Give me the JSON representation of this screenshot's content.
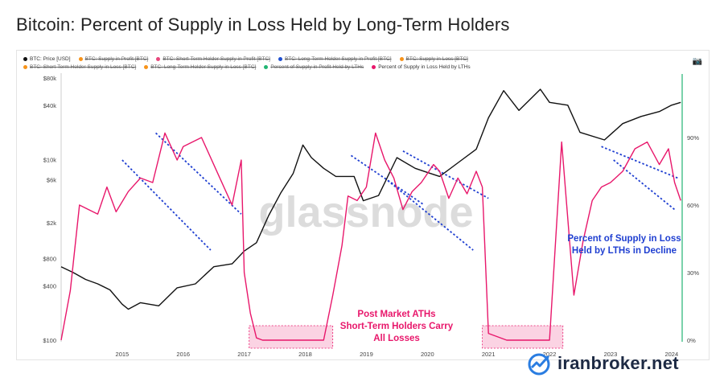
{
  "title": "Bitcoin: Percent of Supply in Loss Held by Long-Term Holders",
  "legend": [
    {
      "label": "BTC: Price [USD]",
      "color": "#111111",
      "active": true
    },
    {
      "label": "BTC: Supply in Profit [BTC]",
      "color": "#f7931a",
      "active": false
    },
    {
      "label": "BTC: Short-Term Holder Supply in Profit [BTC]",
      "color": "#e8467c",
      "active": false
    },
    {
      "label": "BTC: Long-Term Holder Supply in Profit [BTC]",
      "color": "#1f4fd1",
      "active": false
    },
    {
      "label": "BTC: Supply in Loss [BTC]",
      "color": "#f7931a",
      "active": false
    },
    {
      "label": "BTC: Short-Term Holder Supply in Loss [BTC]",
      "color": "#f7931a",
      "active": false
    },
    {
      "label": "BTC: Long-Term Holder Supply in Loss [BTC]",
      "color": "#f7931a",
      "active": false
    },
    {
      "label": "Percent of Supply in Profit Held by LTHs",
      "color": "#22b573",
      "active": false
    },
    {
      "label": "Percent of Supply in Loss Held by LTHs",
      "color": "#e8176b",
      "active": true
    }
  ],
  "watermark": "glassnode",
  "brand": "iranbroker.net",
  "colors": {
    "price": "#111111",
    "ratio": "#e8176b",
    "trend": "#1f3fd1",
    "highlight": "#f9c4da",
    "now_line": "#22b573"
  },
  "chart_data": {
    "type": "line",
    "x_ticks": [
      "2015",
      "2016",
      "2017",
      "2018",
      "2019",
      "2020",
      "2021",
      "2022",
      "2023",
      "2024"
    ],
    "y_left_ticks": [
      "$80k",
      "$40k",
      "$10k",
      "$6k",
      "$2k",
      "$800",
      "$400",
      "$100"
    ],
    "y_right_ticks": [
      "90%",
      "60%",
      "30%",
      "0%"
    ],
    "y_left_scale": "log",
    "series": [
      {
        "name": "BTC: Price [USD]",
        "axis": "left",
        "x": [
          2014.0,
          2014.2,
          2014.4,
          2014.6,
          2014.8,
          2015.0,
          2015.1,
          2015.3,
          2015.6,
          2015.9,
          2016.2,
          2016.5,
          2016.8,
          2017.0,
          2017.2,
          2017.4,
          2017.6,
          2017.8,
          2017.96,
          2018.1,
          2018.3,
          2018.5,
          2018.8,
          2018.95,
          2019.2,
          2019.5,
          2019.8,
          2020.0,
          2020.2,
          2020.5,
          2020.8,
          2021.0,
          2021.25,
          2021.5,
          2021.85,
          2022.0,
          2022.3,
          2022.5,
          2022.9,
          2023.2,
          2023.5,
          2023.8,
          2024.0,
          2024.15
        ],
        "values": [
          650,
          560,
          470,
          420,
          360,
          250,
          220,
          260,
          240,
          380,
          420,
          650,
          700,
          970,
          1200,
          2400,
          4300,
          7000,
          14500,
          10500,
          8000,
          6500,
          6500,
          3500,
          4000,
          10500,
          8000,
          7200,
          6500,
          9200,
          13000,
          29000,
          58000,
          35000,
          60000,
          43000,
          40000,
          20000,
          16500,
          25000,
          30000,
          34000,
          40000,
          43000
        ]
      },
      {
        "name": "Percent of Supply in Loss Held by LTHs",
        "axis": "right",
        "x": [
          2014.0,
          2014.15,
          2014.3,
          2014.45,
          2014.6,
          2014.75,
          2014.9,
          2015.1,
          2015.3,
          2015.5,
          2015.7,
          2015.9,
          2016.0,
          2016.3,
          2016.6,
          2016.8,
          2016.95,
          2017.0,
          2017.1,
          2017.2,
          2017.3,
          2017.5,
          2018.0,
          2018.2,
          2018.3,
          2018.45,
          2018.6,
          2018.7,
          2018.85,
          2019.0,
          2019.15,
          2019.3,
          2019.45,
          2019.6,
          2019.75,
          2019.9,
          2020.1,
          2020.2,
          2020.35,
          2020.5,
          2020.65,
          2020.8,
          2020.9,
          2021.0,
          2021.3,
          2021.6,
          2021.65,
          2021.75,
          2021.9,
          2022.0,
          2022.2,
          2022.4,
          2022.55,
          2022.7,
          2022.85,
          2023.0,
          2023.2,
          2023.4,
          2023.6,
          2023.8,
          2023.95,
          2024.05,
          2024.15
        ],
        "values": [
          0,
          22,
          60,
          58,
          56,
          68,
          57,
          66,
          72,
          70,
          92,
          80,
          86,
          90,
          72,
          60,
          80,
          30,
          12,
          1,
          0,
          0,
          0,
          0,
          0,
          20,
          42,
          64,
          62,
          68,
          92,
          80,
          72,
          58,
          66,
          70,
          78,
          75,
          63,
          72,
          65,
          75,
          68,
          3,
          0,
          0,
          0,
          0,
          0,
          0,
          88,
          20,
          44,
          62,
          68,
          70,
          75,
          85,
          88,
          78,
          85,
          70,
          62
        ]
      }
    ],
    "annotations": [
      "Post Market ATHs",
      "Short-Term Holders Carry",
      "All Losses",
      "Percent of Supply in Loss",
      "Held by LTHs in Decline"
    ]
  }
}
